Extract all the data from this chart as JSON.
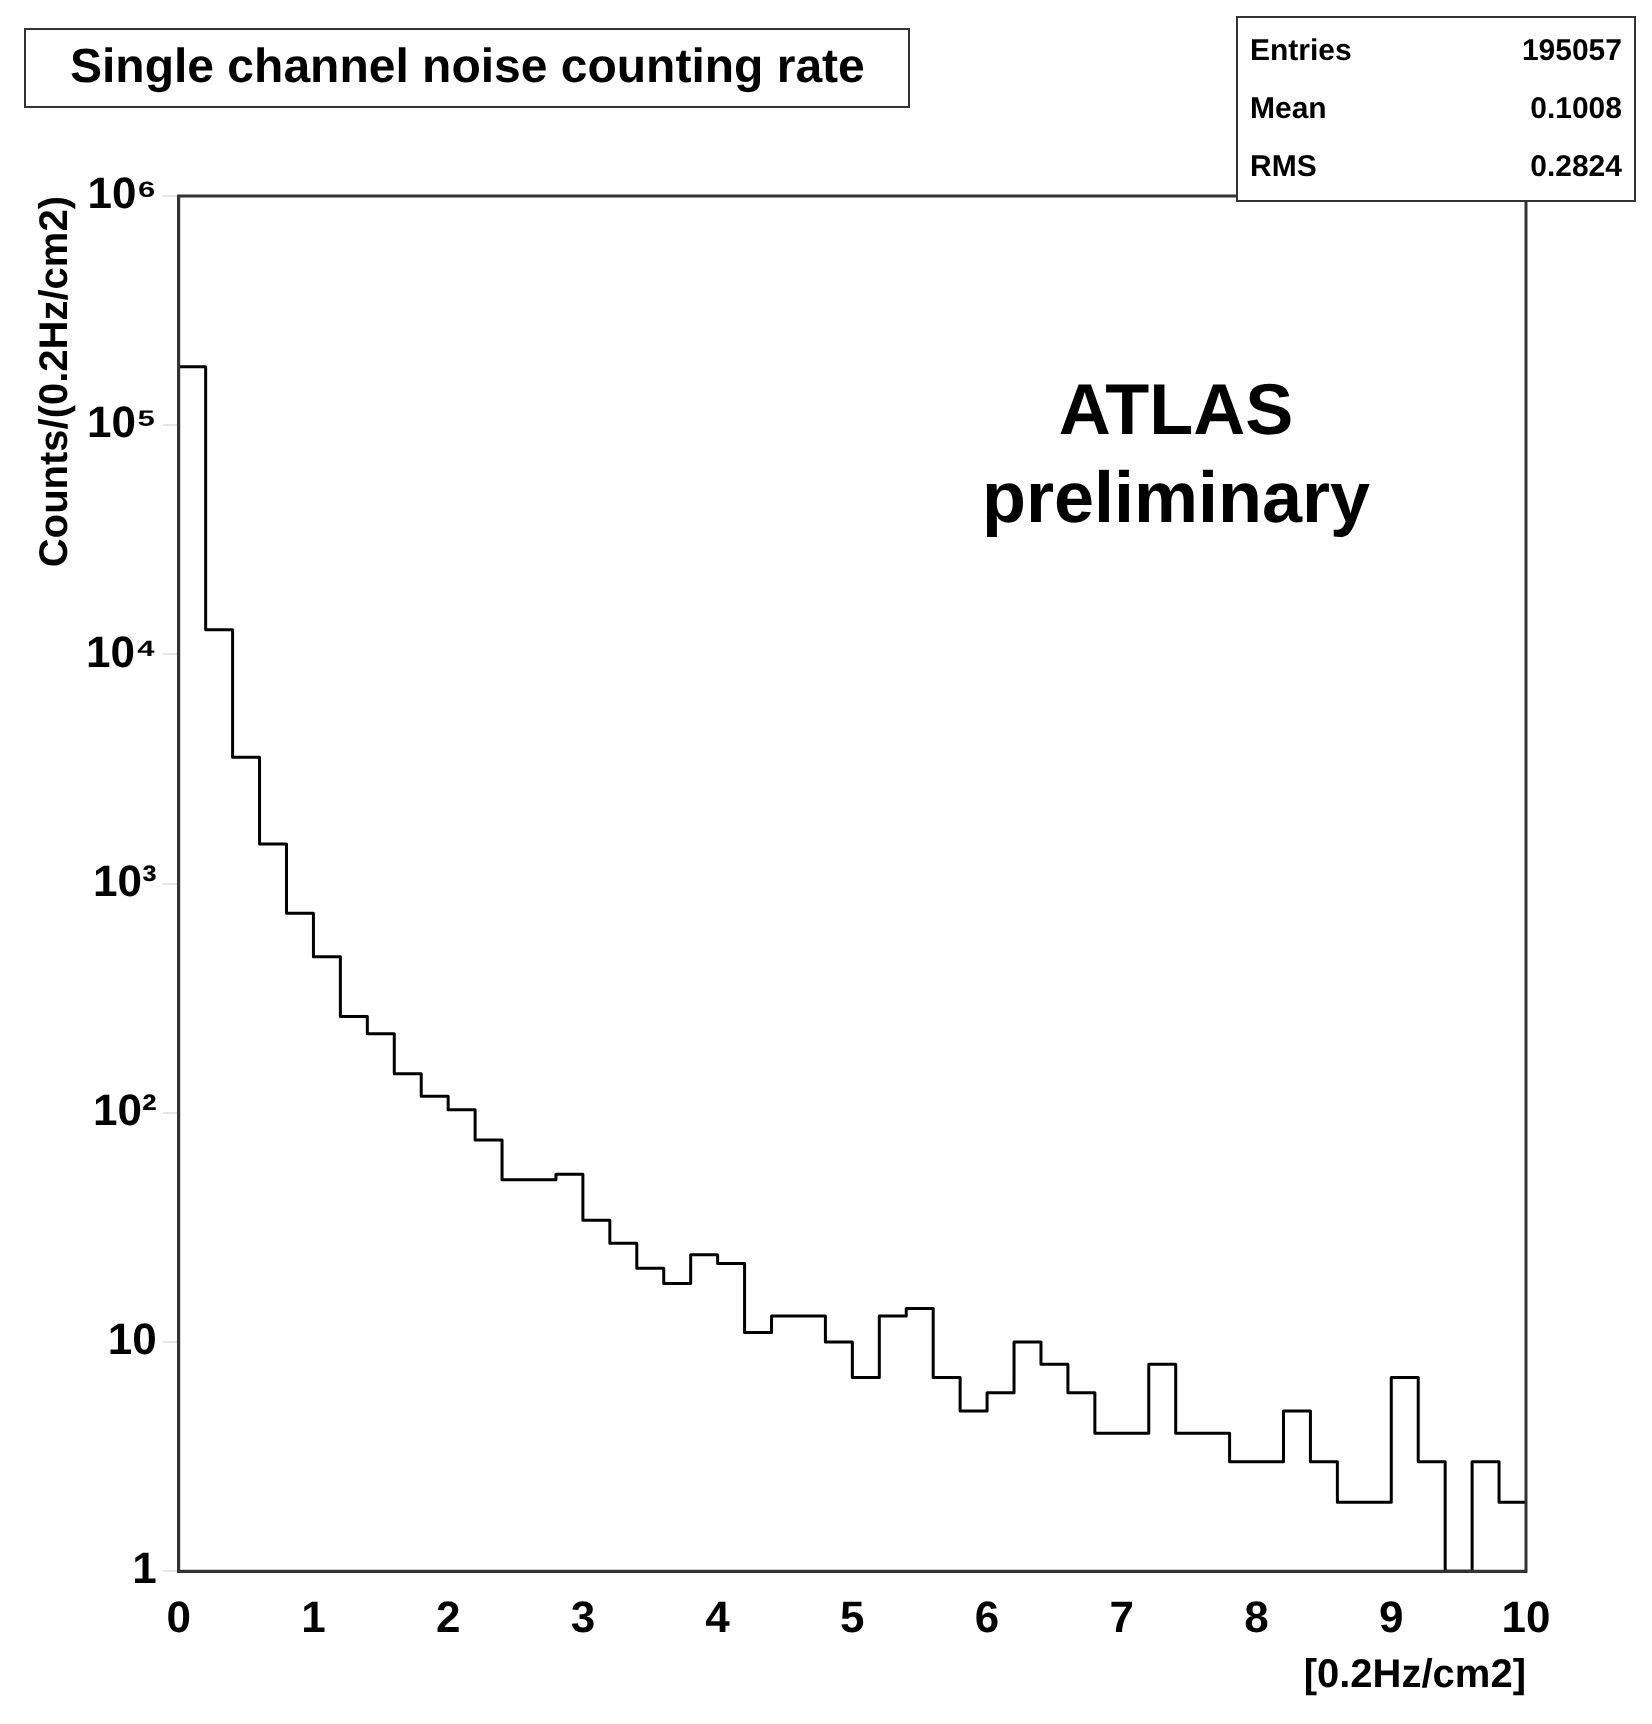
{
  "chart_data": {
    "type": "histogram",
    "title": "Single channel noise counting rate",
    "xlabel": "[0.2Hz/cm2]",
    "ylabel": "Counts/(0.2Hz/cm2)",
    "annotations": [
      "ATLAS preliminary",
      "Entries 195057",
      "Mean 0.1008",
      "RMS 0.2824"
    ],
    "bins": [
      0,
      0.2,
      0.4,
      0.6,
      0.8,
      1,
      1.2,
      1.4,
      1.6,
      1.8,
      2,
      2.2,
      2.4,
      2.6,
      2.8,
      3,
      3.2,
      3.4,
      3.6,
      3.8,
      4,
      4.2,
      4.4,
      4.6,
      4.8,
      5,
      5.2,
      5.4,
      5.6,
      5.8,
      6,
      6.2,
      6.4,
      6.6,
      6.8,
      7,
      7.2,
      7.4,
      7.6,
      7.8,
      8,
      8.2,
      8.4,
      8.6,
      8.8,
      9,
      9.2,
      9.4,
      9.6,
      9.8,
      10
    ],
    "values": [
      180000,
      12800,
      3560,
      1490,
      743,
      480,
      263,
      221,
      148,
      118,
      103,
      76,
      51,
      51,
      54,
      34,
      27,
      21,
      18,
      24,
      22,
      11,
      13,
      13,
      10,
      7,
      13,
      14,
      7,
      5,
      6,
      10,
      8,
      6,
      4,
      4,
      8,
      4,
      4,
      3,
      3,
      5,
      3,
      2,
      2,
      7,
      3,
      null,
      3,
      2
    ],
    "color": "#000000",
    "log": true,
    "grid": false,
    "legend": false,
    "xlim": [
      0,
      10
    ],
    "xticks": [
      0,
      1,
      2,
      3,
      4,
      5,
      6,
      7,
      8,
      9,
      10
    ],
    "ylim": [
      1,
      1000000
    ],
    "yticks": [
      1,
      10,
      {
        "value": 100,
        "label": "10²"
      },
      {
        "value": 1000,
        "label": "10³"
      },
      {
        "value": 10000,
        "label": "10⁴"
      },
      {
        "value": 100000,
        "label": "10⁵"
      },
      {
        "value": 1000000,
        "label": "10⁶"
      }
    ]
  }
}
